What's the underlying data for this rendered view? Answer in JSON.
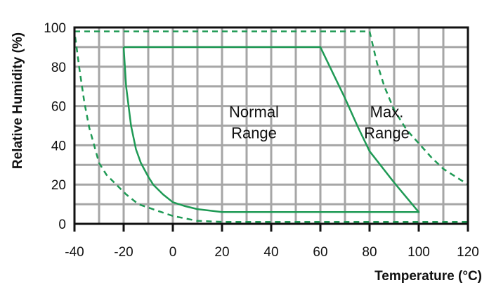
{
  "chart_data": {
    "type": "line",
    "title": "",
    "xlabel": "Temperature (°C)",
    "ylabel": "Relative Humidity (%)",
    "xlim": [
      -40,
      120
    ],
    "ylim": [
      0,
      100
    ],
    "xticks": [
      "-40",
      "-20",
      "0",
      "20",
      "40",
      "60",
      "80",
      "100",
      "120"
    ],
    "yticks": [
      "0",
      "20",
      "40",
      "60",
      "80",
      "100"
    ],
    "grid": {
      "on": true,
      "x_step": 10,
      "y_step": 10,
      "color": "#a6a6a6"
    },
    "series": [
      {
        "style": "solid",
        "color": "#1f9a55",
        "points": [
          [
            -20,
            90
          ],
          [
            60,
            90
          ],
          [
            65,
            77
          ],
          [
            70,
            64
          ],
          [
            75,
            50
          ],
          [
            80,
            37
          ],
          [
            90,
            21
          ],
          [
            100,
            6
          ],
          [
            20,
            6
          ],
          [
            10,
            7.5
          ],
          [
            5,
            9
          ],
          [
            0,
            11
          ],
          [
            -4,
            15
          ],
          [
            -8,
            20
          ],
          [
            -10,
            24
          ],
          [
            -13,
            31
          ],
          [
            -15,
            38
          ],
          [
            -17,
            50
          ],
          [
            -19,
            70
          ],
          [
            -20,
            90
          ]
        ]
      },
      {
        "style": "dashed",
        "color": "#1f9a55",
        "points": [
          [
            -40,
            98
          ],
          [
            80,
            98
          ],
          [
            83,
            82
          ],
          [
            86,
            70
          ],
          [
            90,
            58
          ],
          [
            95,
            48
          ],
          [
            100,
            41
          ],
          [
            105,
            34
          ],
          [
            110,
            28
          ],
          [
            115,
            24
          ],
          [
            120,
            20
          ],
          [
            120,
            1
          ],
          [
            20,
            1
          ],
          [
            10,
            1.5
          ],
          [
            0,
            4
          ],
          [
            -7,
            7
          ],
          [
            -14,
            10
          ],
          [
            -19,
            15
          ],
          [
            -23,
            20
          ],
          [
            -27,
            25
          ],
          [
            -30,
            31
          ],
          [
            -34,
            49
          ],
          [
            -36,
            62
          ],
          [
            -38,
            79
          ],
          [
            -40,
            98
          ]
        ]
      }
    ],
    "annotations": [
      {
        "lines": [
          "Normal",
          "Range"
        ],
        "x": 33,
        "y": 50
      },
      {
        "lines": [
          "Max.",
          "Range"
        ],
        "x": 87,
        "y": 50
      }
    ]
  }
}
